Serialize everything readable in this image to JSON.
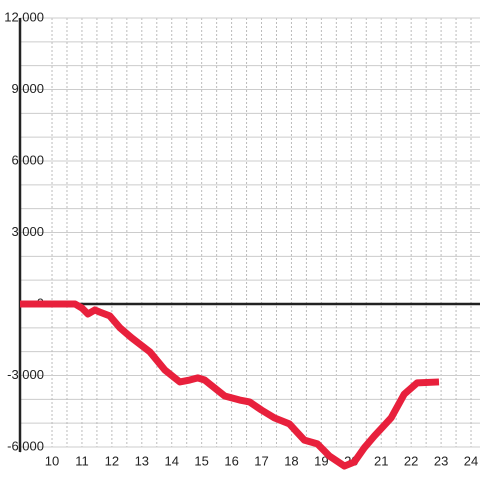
{
  "chart_data": {
    "type": "line",
    "x": [
      8.93,
      10.77,
      11,
      11.2,
      11.43,
      11.6,
      11.93,
      12.27,
      12.67,
      13.27,
      13.77,
      14.27,
      14.6,
      14.87,
      15.1,
      15.43,
      15.77,
      16.27,
      16.6,
      17,
      17.43,
      17.93,
      18.43,
      18.87,
      19.27,
      19.77,
      20.1,
      20.43,
      20.77,
      21.33,
      21.77,
      22.2,
      22.93
    ],
    "series": [
      {
        "color": "#e8203c",
        "values": [
          0,
          0,
          -170,
          -420,
          -250,
          -340,
          -500,
          -1000,
          -1430,
          -2010,
          -2770,
          -3270,
          -3190,
          -3100,
          -3190,
          -3520,
          -3860,
          -4030,
          -4110,
          -4450,
          -4780,
          -5030,
          -5710,
          -5870,
          -6380,
          -6800,
          -6630,
          -6040,
          -5540,
          -4780,
          -3780,
          -3310,
          -3270
        ]
      }
    ],
    "xlim": [
      8.93,
      24.3
    ],
    "xticks": [
      10,
      11,
      12,
      13,
      14,
      15,
      16,
      17,
      18,
      19,
      20,
      21,
      22,
      23,
      24
    ],
    "ylim": [
      -6000,
      12000
    ],
    "yticks": [
      {
        "value": -6000,
        "label": "-6,000"
      },
      {
        "value": -3000,
        "label": "-3,000"
      },
      0,
      {
        "value": 3000,
        "label": "3,000"
      },
      {
        "value": 6000,
        "label": "6,000"
      },
      {
        "value": 9000,
        "label": "9,000"
      },
      {
        "value": 12000,
        "label": "12,000"
      }
    ],
    "grid": true
  }
}
